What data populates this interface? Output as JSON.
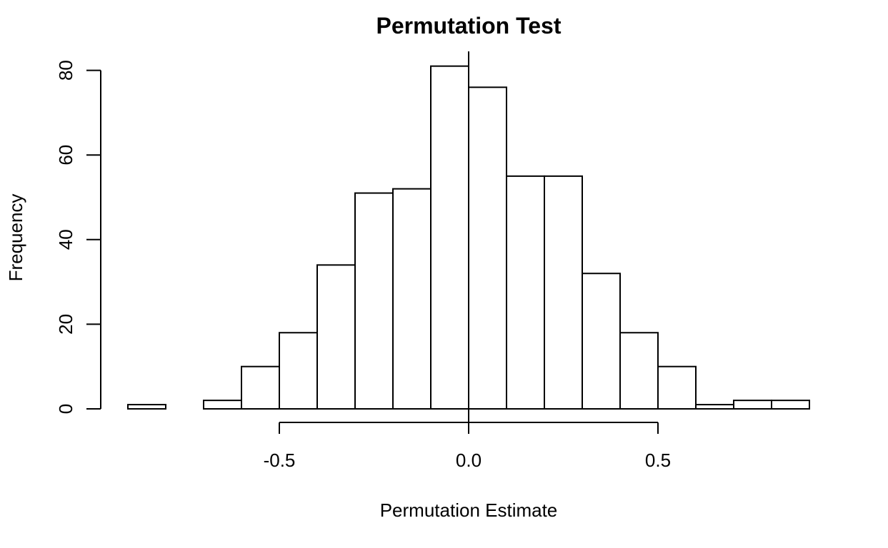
{
  "chart_data": {
    "type": "bar",
    "title": "Permutation Test",
    "xlabel": "Permutation Estimate",
    "ylabel": "Frequency",
    "bin_edges": [
      -0.9,
      -0.8,
      -0.7,
      -0.6,
      -0.5,
      -0.4,
      -0.3,
      -0.2,
      -0.1,
      0.0,
      0.1,
      0.2,
      0.3,
      0.4,
      0.5,
      0.6,
      0.7,
      0.8,
      0.9
    ],
    "values": [
      1,
      0,
      2,
      10,
      18,
      34,
      51,
      52,
      81,
      76,
      55,
      55,
      32,
      18,
      10,
      1,
      2,
      2
    ],
    "xlim": [
      -0.9,
      0.9
    ],
    "ylim": [
      0,
      80
    ],
    "x_ticks": [
      -0.5,
      0.0,
      0.5
    ],
    "x_tick_labels": [
      "-0.5",
      "0.0",
      "0.5"
    ],
    "y_ticks": [
      0,
      20,
      40,
      60,
      80
    ],
    "y_tick_labels": [
      "0",
      "20",
      "40",
      "60",
      "80"
    ],
    "reference_line_x": 0.0,
    "grid": false,
    "legend": "none"
  }
}
